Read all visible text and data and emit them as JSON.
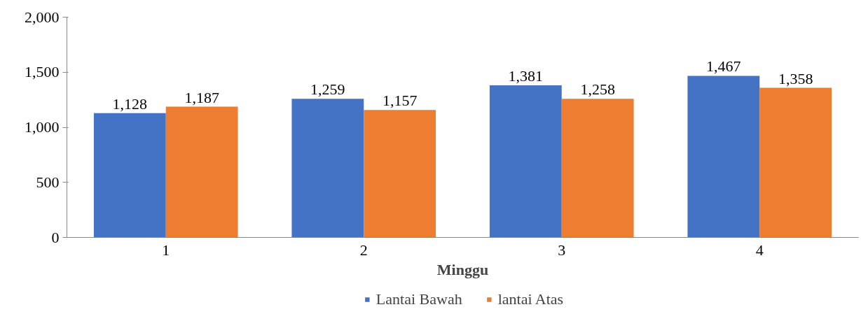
{
  "chart_data": {
    "type": "bar",
    "xlabel": "Minggu",
    "categories": [
      "1",
      "2",
      "3",
      "4"
    ],
    "series": [
      {
        "name": "Lantai Bawah",
        "color": "#4472c4",
        "values": [
          1128,
          1259,
          1381,
          1467
        ],
        "value_labels": [
          "1,128",
          "1,259",
          "1,381",
          "1,467"
        ]
      },
      {
        "name": "lantai Atas",
        "color": "#ed7d31",
        "values": [
          1187,
          1157,
          1258,
          1358
        ],
        "value_labels": [
          "1,187",
          "1,157",
          "1,258",
          "1,358"
        ]
      }
    ],
    "ylim": [
      0,
      2000
    ],
    "yticks": [
      {
        "value": 0,
        "label": "0"
      },
      {
        "value": 500,
        "label": "500"
      },
      {
        "value": 1000,
        "label": "1,000"
      },
      {
        "value": 1500,
        "label": "1,500"
      },
      {
        "value": 2000,
        "label": "2,000"
      }
    ],
    "data_labels": true,
    "grid": false,
    "legend": "bottom"
  }
}
